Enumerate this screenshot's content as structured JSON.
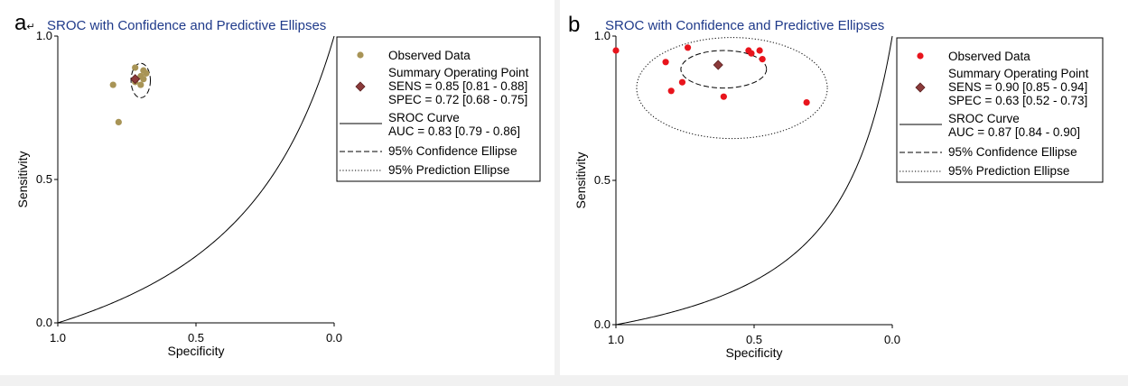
{
  "chart_data": [
    {
      "type": "scatter",
      "panel_label": "a",
      "panel_mark": "↵",
      "title": "SROC with Confidence and Predictive Ellipses",
      "xlabel": "Specificity",
      "ylabel": "Sensitivity",
      "x_reversed": true,
      "xlim": [
        1.0,
        0.0
      ],
      "ylim": [
        0.0,
        1.0
      ],
      "xticks": [
        "1.0",
        "0.5",
        "0.0"
      ],
      "yticks": [
        "0.0",
        "0.5",
        "1.0"
      ],
      "point_color": "#a89456",
      "observed_data": [
        {
          "spec": 0.72,
          "sens": 0.89
        },
        {
          "spec": 0.69,
          "sens": 0.88
        },
        {
          "spec": 0.68,
          "sens": 0.87
        },
        {
          "spec": 0.7,
          "sens": 0.86
        },
        {
          "spec": 0.69,
          "sens": 0.85
        },
        {
          "spec": 0.72,
          "sens": 0.84
        },
        {
          "spec": 0.7,
          "sens": 0.83
        },
        {
          "spec": 0.8,
          "sens": 0.83
        },
        {
          "spec": 0.78,
          "sens": 0.7
        }
      ],
      "summary_point": {
        "spec": 0.72,
        "sens": 0.85,
        "color": "#8b3a3a"
      },
      "confidence_ellipse": {
        "cx": 0.7,
        "cy": 0.845,
        "rx": 0.035,
        "ry": 0.06
      },
      "sroc_b": 3.3,
      "legend": {
        "position": "right",
        "observed": "Observed Data",
        "summary": "Summary Operating Point",
        "sens": "SENS = 0.85 [0.81 - 0.88]",
        "spec": "SPEC = 0.72 [0.68 - 0.75]",
        "curve": "SROC Curve",
        "auc": "AUC = 0.83 [0.79 - 0.86]",
        "conf": "95% Confidence Ellipse",
        "pred": "95% Prediction Ellipse"
      }
    },
    {
      "type": "scatter",
      "panel_label": "b",
      "panel_mark": "",
      "title": "SROC with Confidence and Predictive Ellipses",
      "xlabel": "Specificity",
      "ylabel": "Sensitivity",
      "x_reversed": true,
      "xlim": [
        1.0,
        0.0
      ],
      "ylim": [
        0.0,
        1.0
      ],
      "xticks": [
        "1.0",
        "0.5",
        "0.0"
      ],
      "yticks": [
        "0.0",
        "0.5",
        "1.0"
      ],
      "point_color": "#e8141c",
      "observed_data": [
        {
          "spec": 1.0,
          "sens": 0.95
        },
        {
          "spec": 0.74,
          "sens": 0.96
        },
        {
          "spec": 0.52,
          "sens": 0.95
        },
        {
          "spec": 0.48,
          "sens": 0.95
        },
        {
          "spec": 0.51,
          "sens": 0.94
        },
        {
          "spec": 0.47,
          "sens": 0.92
        },
        {
          "spec": 0.82,
          "sens": 0.91
        },
        {
          "spec": 0.76,
          "sens": 0.84
        },
        {
          "spec": 0.8,
          "sens": 0.81
        },
        {
          "spec": 0.61,
          "sens": 0.79
        },
        {
          "spec": 0.31,
          "sens": 0.77
        }
      ],
      "summary_point": {
        "spec": 0.63,
        "sens": 0.9,
        "color": "#8b3a3a"
      },
      "confidence_ellipse": {
        "cx": 0.61,
        "cy": 0.885,
        "rx": 0.155,
        "ry": 0.065
      },
      "prediction_ellipse": {
        "cx": 0.58,
        "cy": 0.82,
        "rx": 0.345,
        "ry": 0.175
      },
      "sroc_b": 5.6,
      "legend": {
        "position": "right",
        "observed": "Observed Data",
        "summary": "Summary Operating Point",
        "sens": "SENS = 0.90 [0.85 - 0.94]",
        "spec": "SPEC = 0.63 [0.52 - 0.73]",
        "curve": "SROC Curve",
        "auc": "AUC = 0.87 [0.84 - 0.90]",
        "conf": "95% Confidence Ellipse",
        "pred": "95% Prediction Ellipse"
      }
    }
  ]
}
